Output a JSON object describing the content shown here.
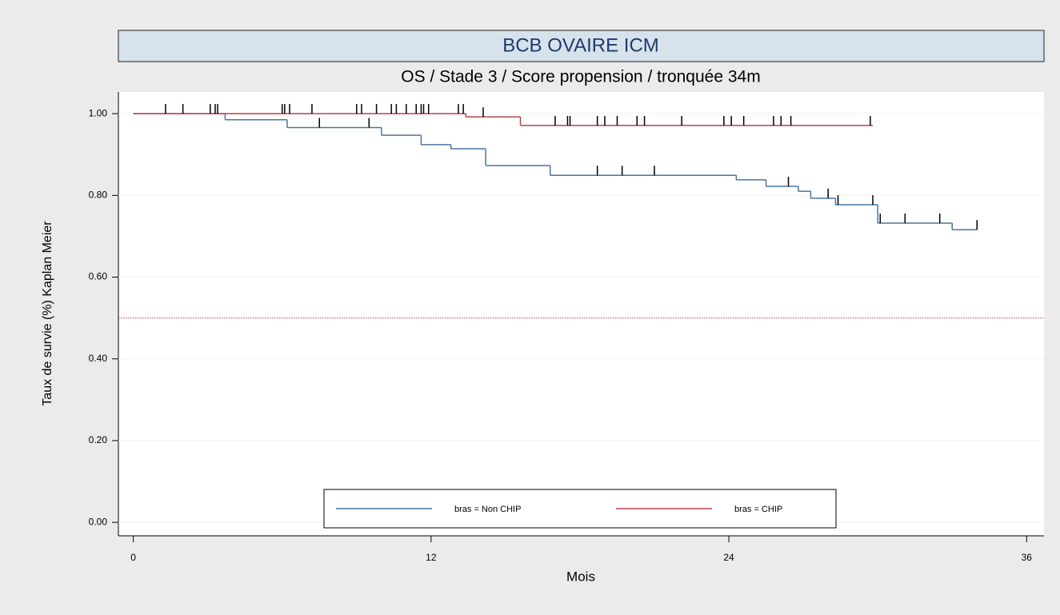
{
  "chart_data": {
    "type": "kaplan-meier",
    "title": "BCB OVAIRE ICM",
    "subtitle": "OS  / Stade 3 / Score propension / tronquée 34m",
    "x_label": "Mois",
    "y_label": "Taux de survie (%) Kaplan Meier",
    "xlim": [
      -0.6,
      36.7
    ],
    "ylim": [
      -0.033,
      1.053
    ],
    "xticks": [
      0,
      12,
      24,
      36
    ],
    "yticks": [
      {
        "value": 0,
        "label": "0.00"
      },
      {
        "value": 0.2,
        "label": "0.20"
      },
      {
        "value": 0.4,
        "label": "0.40"
      },
      {
        "value": 0.6,
        "label": "0.60"
      },
      {
        "value": 0.8,
        "label": "0.80"
      },
      {
        "value": 1,
        "label": "1.00"
      }
    ],
    "grid": true,
    "reference_line": {
      "value": 0.5,
      "color": "#c0404a"
    },
    "legend": "bottom",
    "series": [
      {
        "name": "bras = Non CHIP",
        "color": "#4a74a0",
        "x": [
          0,
          3.7,
          6.2,
          10,
          11.6,
          12.8,
          14.2,
          16.8,
          24.3,
          25.5,
          26.8,
          27.3,
          28.3,
          30,
          33
        ],
        "values": [
          1,
          0.985,
          0.966,
          0.947,
          0.924,
          0.914,
          0.873,
          0.849,
          0.838,
          0.822,
          0.81,
          0.793,
          0.777,
          0.732,
          0.716
        ],
        "end": 34,
        "censored": [
          7.5,
          9.5,
          18.7,
          19.7,
          21,
          26.4,
          28,
          28.4,
          29.8,
          30.1,
          31.1,
          32.5,
          34
        ]
      },
      {
        "name": "bras = CHIP",
        "color": "#b5454a",
        "x": [
          0,
          13.4,
          15.6
        ],
        "values": [
          1,
          0.992,
          0.971
        ],
        "end": 29.8,
        "censored": [
          1.3,
          2,
          3.1,
          3.3,
          3.4,
          6,
          6.1,
          6.3,
          7.2,
          9,
          9.2,
          9.8,
          10.4,
          10.6,
          11,
          11.4,
          11.6,
          11.7,
          11.9,
          13.1,
          13.3,
          14.1,
          17,
          17.5,
          17.6,
          18.7,
          19,
          19.5,
          20.3,
          20.6,
          22.1,
          23.8,
          24.1,
          24.6,
          25.8,
          26.1,
          26.5,
          29.7
        ]
      }
    ]
  }
}
